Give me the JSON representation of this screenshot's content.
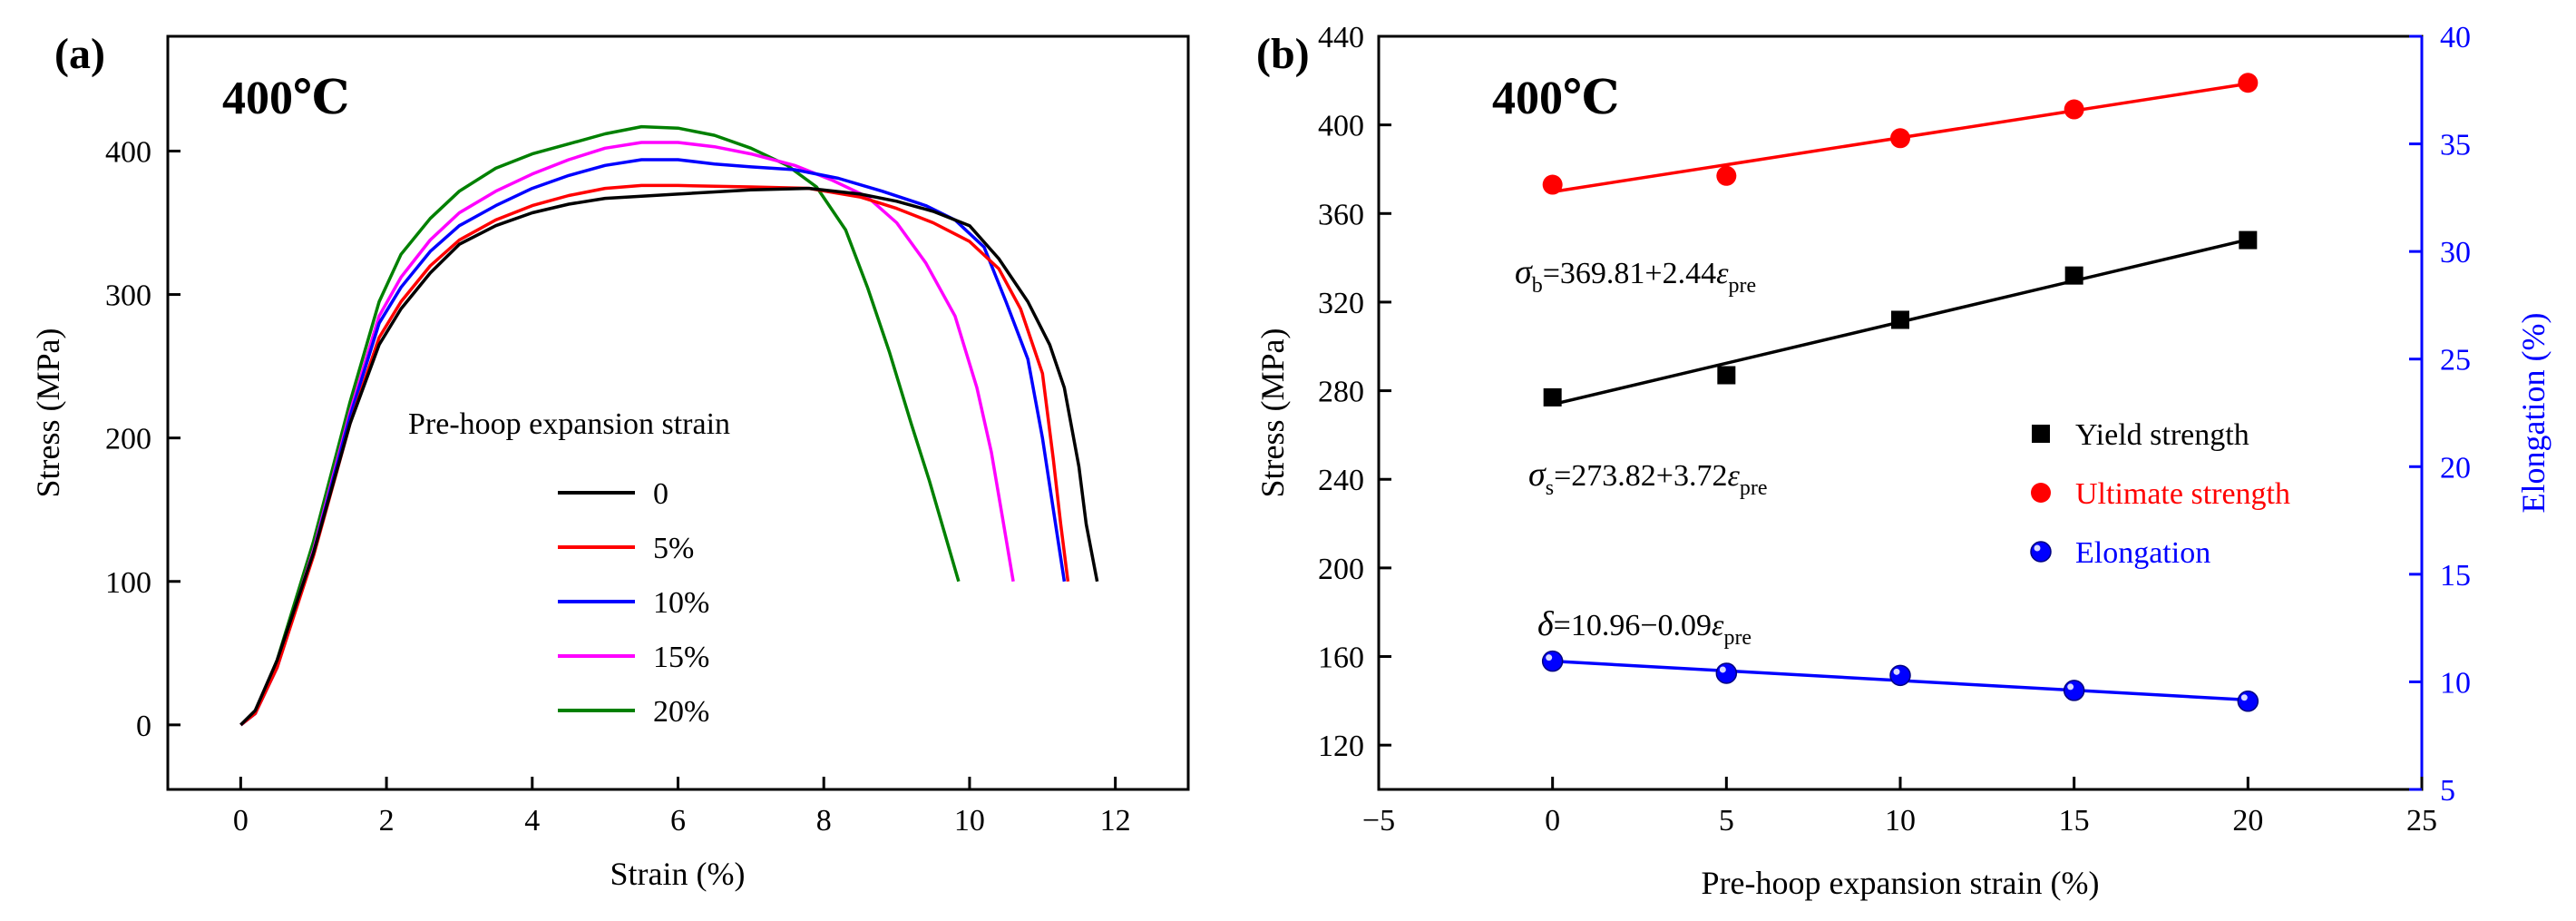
{
  "chart_data": [
    {
      "panel": "(a)",
      "type": "line",
      "annotation": "400℃",
      "xlabel": "Strain (%)",
      "ylabel": "Stress (MPa)",
      "xlim": [
        -1,
        13
      ],
      "ylim": [
        -45,
        480
      ],
      "xticks": [
        0,
        2,
        4,
        6,
        8,
        10,
        12
      ],
      "yticks": [
        0,
        100,
        200,
        300,
        400
      ],
      "legend_title": "Pre-hoop expansion strain",
      "colors": {
        "0": "#000000",
        "5%": "#ff0000",
        "10%": "#0000ff",
        "15%": "#ff00ff",
        "20%": "#008000"
      },
      "series": [
        {
          "name": "0",
          "color": "#000000",
          "points": [
            [
              0,
              0
            ],
            [
              0.2,
              10
            ],
            [
              0.5,
              45
            ],
            [
              1.0,
              120
            ],
            [
              1.5,
              210
            ],
            [
              1.9,
              265
            ],
            [
              2.2,
              290
            ],
            [
              2.6,
              315
            ],
            [
              3.0,
              335
            ],
            [
              3.5,
              348
            ],
            [
              4.0,
              357
            ],
            [
              4.5,
              363
            ],
            [
              5.0,
              367
            ],
            [
              6.0,
              370
            ],
            [
              7.0,
              373
            ],
            [
              7.8,
              374
            ],
            [
              8.5,
              370
            ],
            [
              9.0,
              365
            ],
            [
              9.5,
              358
            ],
            [
              10.0,
              348
            ],
            [
              10.4,
              325
            ],
            [
              10.8,
              295
            ],
            [
              11.1,
              265
            ],
            [
              11.3,
              235
            ],
            [
              11.5,
              180
            ],
            [
              11.6,
              140
            ],
            [
              11.75,
              100
            ]
          ]
        },
        {
          "name": "5%",
          "color": "#ff0000",
          "points": [
            [
              0,
              0
            ],
            [
              0.2,
              8
            ],
            [
              0.5,
              40
            ],
            [
              1.0,
              118
            ],
            [
              1.5,
              210
            ],
            [
              1.9,
              270
            ],
            [
              2.2,
              295
            ],
            [
              2.6,
              320
            ],
            [
              3.0,
              338
            ],
            [
              3.5,
              352
            ],
            [
              4.0,
              362
            ],
            [
              4.5,
              369
            ],
            [
              5.0,
              374
            ],
            [
              5.5,
              376
            ],
            [
              6.0,
              376
            ],
            [
              7.0,
              375
            ],
            [
              7.8,
              374
            ],
            [
              8.5,
              368
            ],
            [
              9.0,
              360
            ],
            [
              9.5,
              350
            ],
            [
              10.0,
              337
            ],
            [
              10.4,
              318
            ],
            [
              10.7,
              290
            ],
            [
              11.0,
              245
            ],
            [
              11.15,
              185
            ],
            [
              11.25,
              140
            ],
            [
              11.35,
              100
            ]
          ]
        },
        {
          "name": "10%",
          "color": "#0000ff",
          "points": [
            [
              0,
              0
            ],
            [
              0.2,
              8
            ],
            [
              0.5,
              40
            ],
            [
              1.0,
              120
            ],
            [
              1.5,
              215
            ],
            [
              1.9,
              280
            ],
            [
              2.2,
              305
            ],
            [
              2.6,
              330
            ],
            [
              3.0,
              348
            ],
            [
              3.5,
              362
            ],
            [
              4.0,
              374
            ],
            [
              4.5,
              383
            ],
            [
              5.0,
              390
            ],
            [
              5.5,
              394
            ],
            [
              6.0,
              394
            ],
            [
              6.5,
              391
            ],
            [
              7.0,
              389
            ],
            [
              7.6,
              387
            ],
            [
              8.2,
              381
            ],
            [
              8.8,
              372
            ],
            [
              9.4,
              362
            ],
            [
              9.8,
              352
            ],
            [
              10.2,
              333
            ],
            [
              10.5,
              295
            ],
            [
              10.8,
              255
            ],
            [
              11.0,
              200
            ],
            [
              11.15,
              150
            ],
            [
              11.3,
              100
            ]
          ]
        },
        {
          "name": "15%",
          "color": "#ff00ff",
          "points": [
            [
              0,
              0
            ],
            [
              0.2,
              8
            ],
            [
              0.5,
              42
            ],
            [
              1.0,
              122
            ],
            [
              1.5,
              218
            ],
            [
              1.9,
              285
            ],
            [
              2.2,
              312
            ],
            [
              2.6,
              338
            ],
            [
              3.0,
              357
            ],
            [
              3.5,
              372
            ],
            [
              4.0,
              384
            ],
            [
              4.5,
              394
            ],
            [
              5.0,
              402
            ],
            [
              5.5,
              406
            ],
            [
              6.0,
              406
            ],
            [
              6.5,
              403
            ],
            [
              7.0,
              398
            ],
            [
              7.6,
              390
            ],
            [
              8.1,
              380
            ],
            [
              8.6,
              368
            ],
            [
              9.0,
              350
            ],
            [
              9.4,
              322
            ],
            [
              9.8,
              285
            ],
            [
              10.1,
              235
            ],
            [
              10.3,
              190
            ],
            [
              10.45,
              145
            ],
            [
              10.6,
              100
            ]
          ]
        },
        {
          "name": "20%",
          "color": "#008000",
          "points": [
            [
              0,
              0
            ],
            [
              0.2,
              8
            ],
            [
              0.5,
              45
            ],
            [
              1.0,
              128
            ],
            [
              1.5,
              225
            ],
            [
              1.9,
              295
            ],
            [
              2.2,
              328
            ],
            [
              2.6,
              353
            ],
            [
              3.0,
              372
            ],
            [
              3.5,
              388
            ],
            [
              4.0,
              398
            ],
            [
              4.5,
              405
            ],
            [
              5.0,
              412
            ],
            [
              5.5,
              417
            ],
            [
              6.0,
              416
            ],
            [
              6.5,
              411
            ],
            [
              7.0,
              402
            ],
            [
              7.5,
              390
            ],
            [
              7.9,
              375
            ],
            [
              8.3,
              345
            ],
            [
              8.6,
              305
            ],
            [
              8.9,
              260
            ],
            [
              9.2,
              210
            ],
            [
              9.45,
              170
            ],
            [
              9.65,
              135
            ],
            [
              9.85,
              100
            ]
          ]
        }
      ]
    },
    {
      "panel": "(b)",
      "type": "scatter",
      "annotation": "400℃",
      "xlabel": "Pre-hoop expansion strain (%)",
      "ylabel": "Stress (MPa)",
      "y2label": "Elongation (%)",
      "xlim": [
        -5,
        25
      ],
      "ylim": [
        100,
        440
      ],
      "y2lim": [
        5,
        40
      ],
      "xticks": [
        -5,
        0,
        5,
        10,
        15,
        20,
        25
      ],
      "xtick_labels": [
        "−5",
        "0",
        "5",
        "10",
        "15",
        "20",
        "25"
      ],
      "yticks": [
        120,
        160,
        200,
        240,
        280,
        320,
        360,
        400,
        440
      ],
      "y2ticks": [
        5,
        10,
        15,
        20,
        25,
        30,
        35,
        40
      ],
      "x": [
        0,
        5,
        10,
        15,
        20
      ],
      "series": [
        {
          "name": "Yield strength",
          "axis": "left",
          "color": "#000000",
          "marker": "square",
          "values": [
            277,
            287,
            312,
            332,
            348
          ],
          "fit": {
            "intercept": 273.82,
            "slope": 3.72
          }
        },
        {
          "name": "Ultimate strength",
          "axis": "left",
          "color": "#ff0000",
          "marker": "circle",
          "values": [
            373,
            377,
            394,
            407,
            419
          ],
          "fit": {
            "intercept": 369.81,
            "slope": 2.44
          }
        },
        {
          "name": "Elongation",
          "axis": "right",
          "color": "#0000ff",
          "marker": "sphere",
          "values": [
            10.96,
            10.4,
            10.3,
            9.6,
            9.1
          ],
          "fit": {
            "intercept": 10.96,
            "slope": -0.09
          }
        }
      ],
      "equations": [
        {
          "sym": "σ",
          "sub": "b",
          "text": "=369.81+2.44",
          "var": "ε",
          "varsub": "pre"
        },
        {
          "sym": "σ",
          "sub": "s",
          "text": "=273.82+3.72",
          "var": "ε",
          "varsub": "pre"
        },
        {
          "sym": "δ",
          "sub": "",
          "text": "=10.96−0.09",
          "var": "ε",
          "varsub": "pre"
        }
      ]
    }
  ]
}
